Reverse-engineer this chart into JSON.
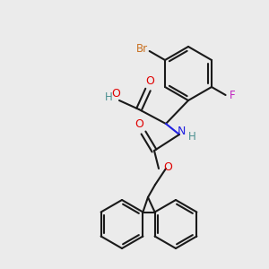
{
  "background_color": "#ebebeb",
  "bond_color": "#1a1a1a",
  "atom_colors": {
    "O": "#e00000",
    "N": "#2020e0",
    "Br": "#c87020",
    "F": "#c020c0",
    "H": "#4a9090"
  },
  "figsize": [
    3.0,
    3.0
  ],
  "dpi": 100
}
